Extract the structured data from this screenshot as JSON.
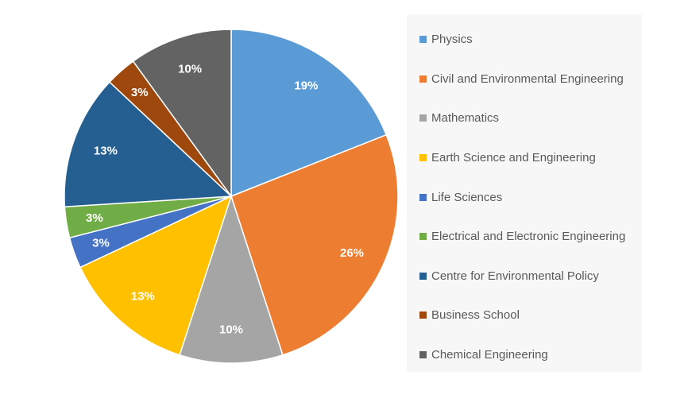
{
  "chart_data": {
    "type": "pie",
    "title": "",
    "categories": [
      "Physics",
      "Civil and Environmental Engineering",
      "Mathematics",
      "Earth Science and Engineering",
      "Life Sciences",
      "Electrical and Electronic Engineering",
      "Centre for Environmental Policy",
      "Business School",
      "Chemical Engineering"
    ],
    "values": [
      19,
      26,
      10,
      13,
      3,
      3,
      13,
      3,
      10
    ],
    "labels": [
      "19%",
      "26%",
      "10%",
      "13%",
      "3%",
      "3%",
      "13%",
      "3%",
      "10%"
    ],
    "colors": [
      "#5b9bd5",
      "#ed7d31",
      "#a5a5a5",
      "#ffc000",
      "#4472c4",
      "#70ad47",
      "#255e91",
      "#9e480e",
      "#636363"
    ],
    "legend_position": "right",
    "start_angle": "top",
    "direction": "clockwise"
  }
}
